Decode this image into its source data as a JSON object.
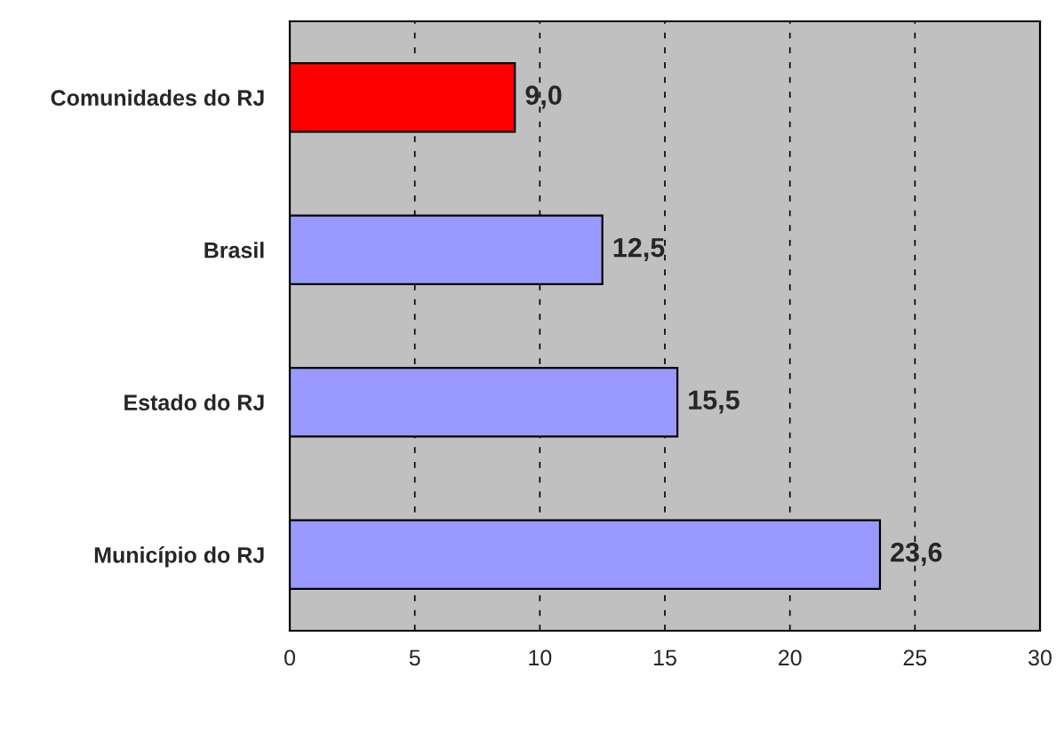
{
  "chart_data": {
    "type": "bar",
    "orientation": "horizontal",
    "categories": [
      "Comunidades do RJ",
      "Brasil",
      "Estado do RJ",
      "Município do RJ"
    ],
    "values": [
      9.0,
      12.5,
      15.5,
      23.6
    ],
    "colors": [
      "#ff0000",
      "#9999ff",
      "#9999ff",
      "#9999ff"
    ],
    "value_labels": [
      "9,0",
      "12,5",
      "15,5",
      "23,6"
    ],
    "xlim": [
      0,
      30
    ],
    "xticks": [
      0,
      5,
      10,
      15,
      20,
      25,
      30
    ],
    "grid": "x"
  }
}
